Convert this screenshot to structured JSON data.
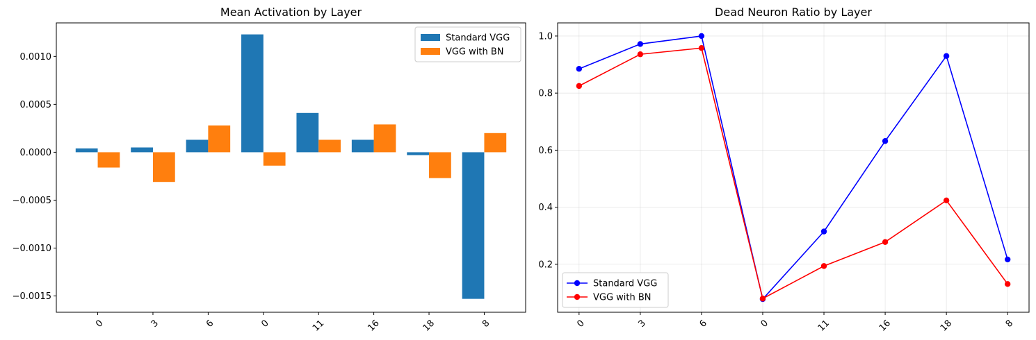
{
  "chart_data": [
    {
      "type": "bar",
      "title": "Mean Activation by Layer",
      "xlabel": "",
      "ylabel": "",
      "categories": [
        "0",
        "3",
        "6",
        "0",
        "11",
        "16",
        "18",
        "8"
      ],
      "series": [
        {
          "name": "Standard VGG",
          "color": "#1f77b4",
          "values": [
            4e-05,
            5e-05,
            0.00013,
            0.00123,
            0.00041,
            0.00013,
            -3e-05,
            -0.00153
          ]
        },
        {
          "name": "VGG with BN",
          "color": "#ff7f0e",
          "values": [
            -0.00016,
            -0.00031,
            0.00028,
            -0.00014,
            0.00013,
            0.00029,
            -0.00027,
            0.0002
          ]
        }
      ],
      "ylim": [
        -0.00167,
        0.00135
      ],
      "yticks": [
        -0.0015,
        -0.001,
        -0.0005,
        0.0,
        0.0005,
        0.001
      ],
      "ytick_labels": [
        "−0.0015",
        "−0.0010",
        "−0.0005",
        "0.0000",
        "0.0005",
        "0.0010"
      ],
      "grid": false,
      "legend": "upper right"
    },
    {
      "type": "line",
      "title": "Dead Neuron Ratio by Layer",
      "xlabel": "",
      "ylabel": "",
      "categories": [
        "0",
        "3",
        "6",
        "0",
        "11",
        "16",
        "18",
        "8"
      ],
      "series": [
        {
          "name": "Standard VGG",
          "color": "#0000ff",
          "values": [
            0.885,
            0.972,
            1.0,
            0.078,
            0.315,
            0.632,
            0.93,
            0.217
          ]
        },
        {
          "name": "VGG with BN",
          "color": "#ff0000",
          "values": [
            0.825,
            0.936,
            0.958,
            0.08,
            0.194,
            0.278,
            0.424,
            0.131
          ]
        }
      ],
      "ylim": [
        0.032,
        1.046
      ],
      "yticks": [
        0.2,
        0.4,
        0.6,
        0.8,
        1.0
      ],
      "ytick_labels": [
        "0.2",
        "0.4",
        "0.6",
        "0.8",
        "1.0"
      ],
      "grid": true,
      "legend": "lower left"
    }
  ]
}
